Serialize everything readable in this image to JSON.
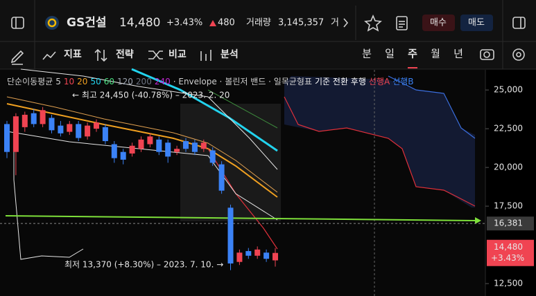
{
  "header": {
    "name": "GS건설",
    "price": "14,480",
    "change_pct": "+3.43%",
    "change": "480",
    "volume_label": "거래량",
    "volume": "3,145,357",
    "cut_text": "거",
    "buy": "매수",
    "sell": "매도"
  },
  "toolbar": {
    "tools": [
      "지표",
      "전략",
      "비교",
      "분석"
    ],
    "periods": [
      "분",
      "일",
      "주",
      "월",
      "년"
    ],
    "selected_period": 2
  },
  "chart": {
    "legend": [
      {
        "text": "단순이동평균",
        "color": "#cfcfcf"
      },
      {
        "text": "5",
        "color": "#cfcfcf"
      },
      {
        "text": "10",
        "color": "#f04452"
      },
      {
        "text": "20",
        "color": "#f0a020"
      },
      {
        "text": "50",
        "color": "#22d3ee"
      },
      {
        "text": "60",
        "color": "#4ade80"
      },
      {
        "text": "120",
        "color": "#9ca3af"
      },
      {
        "text": "200",
        "color": "#6b7280"
      },
      {
        "text": "240",
        "color": "#c026d3"
      },
      {
        "text": "· Envelope ·",
        "color": "#cfcfcf"
      },
      {
        "text": "볼린저 밴드 · 일목균형표",
        "color": "#cfcfcf"
      },
      {
        "text": "기준 전환 후행",
        "color": "#ffffff"
      },
      {
        "text": "선행A",
        "color": "#f04452"
      },
      {
        "text": "선행B",
        "color": "#3b82f6"
      }
    ],
    "ylim": [
      11700,
      26300
    ],
    "yticks": [
      {
        "value": 25000,
        "label": "25,000"
      },
      {
        "value": 22500,
        "label": "22,500"
      },
      {
        "value": 20000,
        "label": "20,000"
      },
      {
        "value": 17500,
        "label": "17,500"
      },
      {
        "value": 12500,
        "label": "12,500"
      }
    ],
    "up_color": "#f04452",
    "down_color": "#3b82f6",
    "candles": [
      {
        "o": 22800,
        "h": 23000,
        "l": 20600,
        "c": 21000
      },
      {
        "o": 21000,
        "h": 23500,
        "l": 19500,
        "c": 23300
      },
      {
        "o": 22600,
        "h": 23600,
        "l": 22300,
        "c": 23400
      },
      {
        "o": 23500,
        "h": 23800,
        "l": 22600,
        "c": 22800
      },
      {
        "o": 22800,
        "h": 23900,
        "l": 22600,
        "c": 23700
      },
      {
        "o": 23200,
        "h": 23400,
        "l": 22200,
        "c": 22400
      },
      {
        "o": 22700,
        "h": 23000,
        "l": 22000,
        "c": 22200
      },
      {
        "o": 22300,
        "h": 23000,
        "l": 22100,
        "c": 22800
      },
      {
        "o": 22800,
        "h": 23000,
        "l": 21700,
        "c": 21900
      },
      {
        "o": 22000,
        "h": 22900,
        "l": 21800,
        "c": 22700
      },
      {
        "o": 22500,
        "h": 23100,
        "l": 22300,
        "c": 22900
      },
      {
        "o": 22600,
        "h": 22800,
        "l": 21500,
        "c": 21700
      },
      {
        "o": 21500,
        "h": 21700,
        "l": 20300,
        "c": 20600
      },
      {
        "o": 21000,
        "h": 21200,
        "l": 20200,
        "c": 20500
      },
      {
        "o": 20900,
        "h": 21600,
        "l": 20700,
        "c": 21400
      },
      {
        "o": 21200,
        "h": 22000,
        "l": 21000,
        "c": 21800
      },
      {
        "o": 21500,
        "h": 22200,
        "l": 21300,
        "c": 22000
      },
      {
        "o": 21800,
        "h": 22000,
        "l": 20800,
        "c": 21000
      },
      {
        "o": 21600,
        "h": 21800,
        "l": 20300,
        "c": 20700
      },
      {
        "o": 21000,
        "h": 21400,
        "l": 20800,
        "c": 21200
      },
      {
        "o": 21700,
        "h": 21900,
        "l": 21000,
        "c": 21200
      },
      {
        "o": 21600,
        "h": 21800,
        "l": 20800,
        "c": 21000
      },
      {
        "o": 21200,
        "h": 21800,
        "l": 21000,
        "c": 21600
      },
      {
        "o": 21100,
        "h": 21300,
        "l": 20100,
        "c": 20300
      },
      {
        "o": 20200,
        "h": 20400,
        "l": 18300,
        "c": 18500
      },
      {
        "o": 17400,
        "h": 17600,
        "l": 13370,
        "c": 13800
      },
      {
        "o": 13900,
        "h": 14700,
        "l": 13700,
        "c": 14500
      },
      {
        "o": 14600,
        "h": 14800,
        "l": 14100,
        "c": 14300
      },
      {
        "o": 14300,
        "h": 14900,
        "l": 14100,
        "c": 14700
      },
      {
        "o": 14500,
        "h": 14700,
        "l": 13900,
        "c": 14100
      },
      {
        "o": 14000,
        "h": 14800,
        "l": 13600,
        "c": 14480
      }
    ],
    "high_note": "← 최고 24,450 (-40.78%) – 2023. 2. 20",
    "low_note": "최저 13,370 (+8.30%) – 2023. 7. 10. →",
    "current_line": {
      "value": 16381,
      "label": "16,381"
    },
    "last_price": {
      "value": 14480,
      "label": "14,480",
      "change": "+3.43%"
    }
  }
}
